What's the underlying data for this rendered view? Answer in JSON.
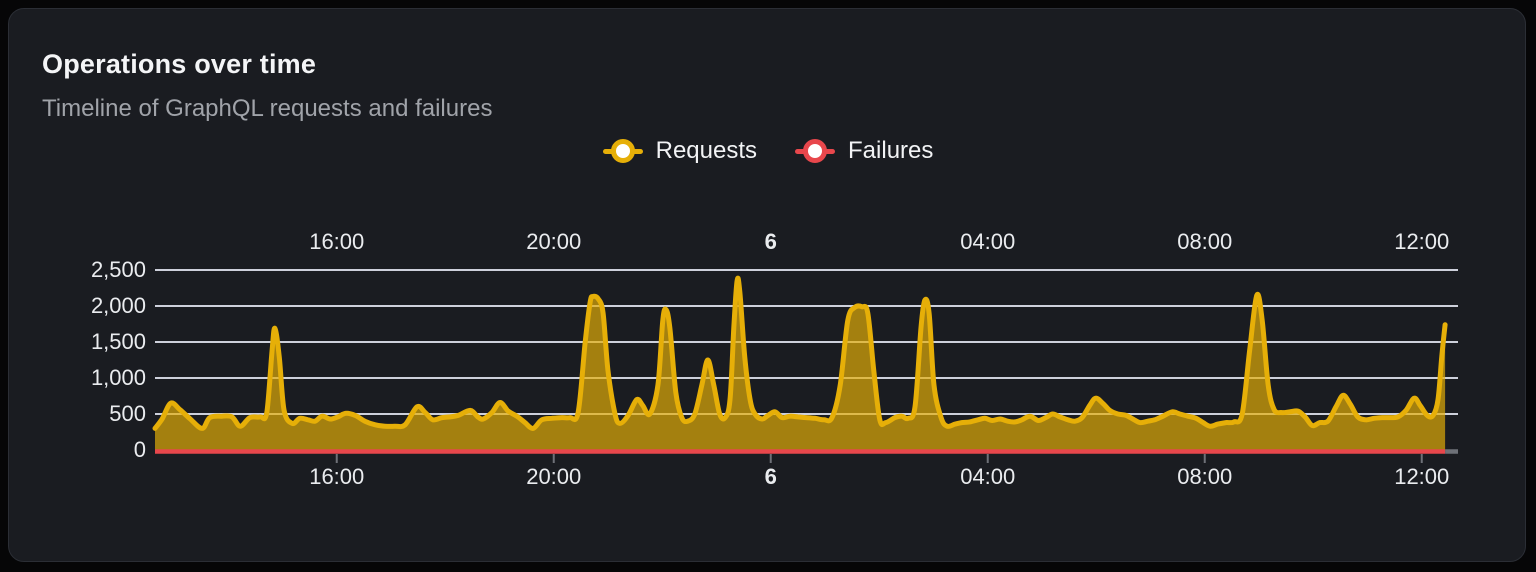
{
  "card": {
    "title": "Operations over time",
    "subtitle": "Timeline of GraphQL requests and failures"
  },
  "legend": {
    "items": [
      {
        "label": "Requests",
        "color": "#E6AF08"
      },
      {
        "label": "Failures",
        "color": "#E8474C"
      }
    ]
  },
  "colors": {
    "requests_line": "#E6AF08",
    "requests_fill_opacity": 0.68,
    "failures_line": "#E8474C",
    "gridline": "#CDD0DB",
    "tick": "#6E7178",
    "card_bg": "#1A1C21",
    "page_bg": "#060607"
  },
  "chart_data": {
    "type": "area",
    "title": "Operations over time",
    "subtitle": "Timeline of GraphQL requests and failures",
    "legend_position": "top center",
    "grid": true,
    "x_axis": {
      "type": "time",
      "start_hour": 12.65,
      "end_hour": 36.43,
      "axis_right_hour": 36.68,
      "tick_hours": [
        16,
        20,
        24,
        28,
        32,
        36
      ],
      "tick_labels": [
        "16:00",
        "20:00",
        "6",
        "04:00",
        "08:00",
        "12:00"
      ],
      "bold_tick": "6",
      "labels_position": "top and bottom"
    },
    "y_axis": {
      "min": 0,
      "max": 2500,
      "ticks": [
        0,
        500,
        1000,
        1500,
        2000,
        2500
      ],
      "tick_labels": [
        "0",
        "500",
        "1,000",
        "1,500",
        "2,000",
        "2,500"
      ]
    },
    "series": [
      {
        "name": "Requests",
        "type": "area-line",
        "smooth": true,
        "color": "#E6AF08",
        "points": [
          [
            12.65,
            300
          ],
          [
            12.78,
            430
          ],
          [
            12.94,
            650
          ],
          [
            13.11,
            560
          ],
          [
            13.3,
            430
          ],
          [
            13.52,
            300
          ],
          [
            13.66,
            450
          ],
          [
            13.88,
            470
          ],
          [
            14.07,
            460
          ],
          [
            14.22,
            330
          ],
          [
            14.4,
            450
          ],
          [
            14.59,
            460
          ],
          [
            14.71,
            520
          ],
          [
            14.81,
            1400
          ],
          [
            14.86,
            1690
          ],
          [
            14.94,
            1300
          ],
          [
            15.03,
            550
          ],
          [
            15.18,
            370
          ],
          [
            15.32,
            440
          ],
          [
            15.47,
            420
          ],
          [
            15.6,
            400
          ],
          [
            15.73,
            470
          ],
          [
            15.88,
            430
          ],
          [
            16.02,
            460
          ],
          [
            16.17,
            510
          ],
          [
            16.34,
            480
          ],
          [
            16.52,
            400
          ],
          [
            16.71,
            350
          ],
          [
            16.89,
            330
          ],
          [
            17.07,
            330
          ],
          [
            17.26,
            350
          ],
          [
            17.48,
            600
          ],
          [
            17.63,
            520
          ],
          [
            17.77,
            420
          ],
          [
            17.94,
            450
          ],
          [
            18.09,
            460
          ],
          [
            18.24,
            480
          ],
          [
            18.46,
            550
          ],
          [
            18.6,
            460
          ],
          [
            18.7,
            430
          ],
          [
            18.86,
            520
          ],
          [
            19.01,
            660
          ],
          [
            19.16,
            540
          ],
          [
            19.32,
            470
          ],
          [
            19.47,
            380
          ],
          [
            19.62,
            300
          ],
          [
            19.78,
            420
          ],
          [
            19.97,
            440
          ],
          [
            20.15,
            450
          ],
          [
            20.3,
            450
          ],
          [
            20.45,
            520
          ],
          [
            20.58,
            1500
          ],
          [
            20.67,
            2050
          ],
          [
            20.72,
            2130
          ],
          [
            20.82,
            2100
          ],
          [
            20.91,
            1900
          ],
          [
            21.0,
            1100
          ],
          [
            21.13,
            500
          ],
          [
            21.22,
            370
          ],
          [
            21.37,
            480
          ],
          [
            21.53,
            700
          ],
          [
            21.64,
            620
          ],
          [
            21.77,
            500
          ],
          [
            21.92,
            900
          ],
          [
            22.01,
            1800
          ],
          [
            22.07,
            1950
          ],
          [
            22.14,
            1700
          ],
          [
            22.25,
            800
          ],
          [
            22.36,
            450
          ],
          [
            22.47,
            400
          ],
          [
            22.6,
            500
          ],
          [
            22.73,
            900
          ],
          [
            22.84,
            1250
          ],
          [
            22.95,
            900
          ],
          [
            23.06,
            500
          ],
          [
            23.16,
            450
          ],
          [
            23.25,
            700
          ],
          [
            23.32,
            1700
          ],
          [
            23.38,
            2350
          ],
          [
            23.43,
            2200
          ],
          [
            23.52,
            1300
          ],
          [
            23.62,
            700
          ],
          [
            23.71,
            500
          ],
          [
            23.84,
            430
          ],
          [
            23.95,
            480
          ],
          [
            24.08,
            530
          ],
          [
            24.21,
            450
          ],
          [
            24.35,
            470
          ],
          [
            24.5,
            460
          ],
          [
            24.65,
            450
          ],
          [
            24.82,
            440
          ],
          [
            24.98,
            420
          ],
          [
            25.13,
            450
          ],
          [
            25.28,
            900
          ],
          [
            25.42,
            1800
          ],
          [
            25.55,
            1980
          ],
          [
            25.68,
            1990
          ],
          [
            25.79,
            1900
          ],
          [
            25.9,
            1100
          ],
          [
            26.01,
            420
          ],
          [
            26.12,
            380
          ],
          [
            26.29,
            450
          ],
          [
            26.42,
            470
          ],
          [
            26.53,
            440
          ],
          [
            26.66,
            600
          ],
          [
            26.77,
            1700
          ],
          [
            26.84,
            2080
          ],
          [
            26.92,
            1900
          ],
          [
            27.01,
            900
          ],
          [
            27.14,
            450
          ],
          [
            27.25,
            330
          ],
          [
            27.4,
            360
          ],
          [
            27.52,
            380
          ],
          [
            27.67,
            390
          ],
          [
            27.82,
            420
          ],
          [
            27.95,
            440
          ],
          [
            28.08,
            410
          ],
          [
            28.23,
            430
          ],
          [
            28.37,
            400
          ],
          [
            28.5,
            390
          ],
          [
            28.63,
            420
          ],
          [
            28.78,
            470
          ],
          [
            28.93,
            410
          ],
          [
            29.07,
            450
          ],
          [
            29.2,
            500
          ],
          [
            29.33,
            460
          ],
          [
            29.48,
            420
          ],
          [
            29.61,
            400
          ],
          [
            29.74,
            450
          ],
          [
            29.88,
            620
          ],
          [
            29.99,
            720
          ],
          [
            30.12,
            650
          ],
          [
            30.25,
            550
          ],
          [
            30.4,
            500
          ],
          [
            30.55,
            480
          ],
          [
            30.7,
            420
          ],
          [
            30.81,
            380
          ],
          [
            30.95,
            400
          ],
          [
            31.08,
            420
          ],
          [
            31.23,
            470
          ],
          [
            31.4,
            530
          ],
          [
            31.54,
            500
          ],
          [
            31.69,
            470
          ],
          [
            31.84,
            440
          ],
          [
            31.97,
            380
          ],
          [
            32.1,
            330
          ],
          [
            32.24,
            360
          ],
          [
            32.39,
            380
          ],
          [
            32.54,
            390
          ],
          [
            32.69,
            500
          ],
          [
            32.83,
            1400
          ],
          [
            32.96,
            2150
          ],
          [
            33.06,
            1800
          ],
          [
            33.17,
            900
          ],
          [
            33.28,
            560
          ],
          [
            33.42,
            520
          ],
          [
            33.57,
            530
          ],
          [
            33.72,
            540
          ],
          [
            33.85,
            460
          ],
          [
            33.98,
            340
          ],
          [
            34.12,
            380
          ],
          [
            34.27,
            400
          ],
          [
            34.42,
            600
          ],
          [
            34.55,
            760
          ],
          [
            34.68,
            640
          ],
          [
            34.82,
            460
          ],
          [
            34.97,
            420
          ],
          [
            35.12,
            440
          ],
          [
            35.27,
            450
          ],
          [
            35.41,
            450
          ],
          [
            35.56,
            460
          ],
          [
            35.71,
            550
          ],
          [
            35.86,
            720
          ],
          [
            35.97,
            620
          ],
          [
            36.1,
            480
          ],
          [
            36.21,
            480
          ],
          [
            36.3,
            700
          ],
          [
            36.37,
            1300
          ],
          [
            36.43,
            1740
          ]
        ]
      },
      {
        "name": "Failures",
        "type": "line",
        "color": "#E8474C",
        "constant_value": 0
      }
    ]
  }
}
